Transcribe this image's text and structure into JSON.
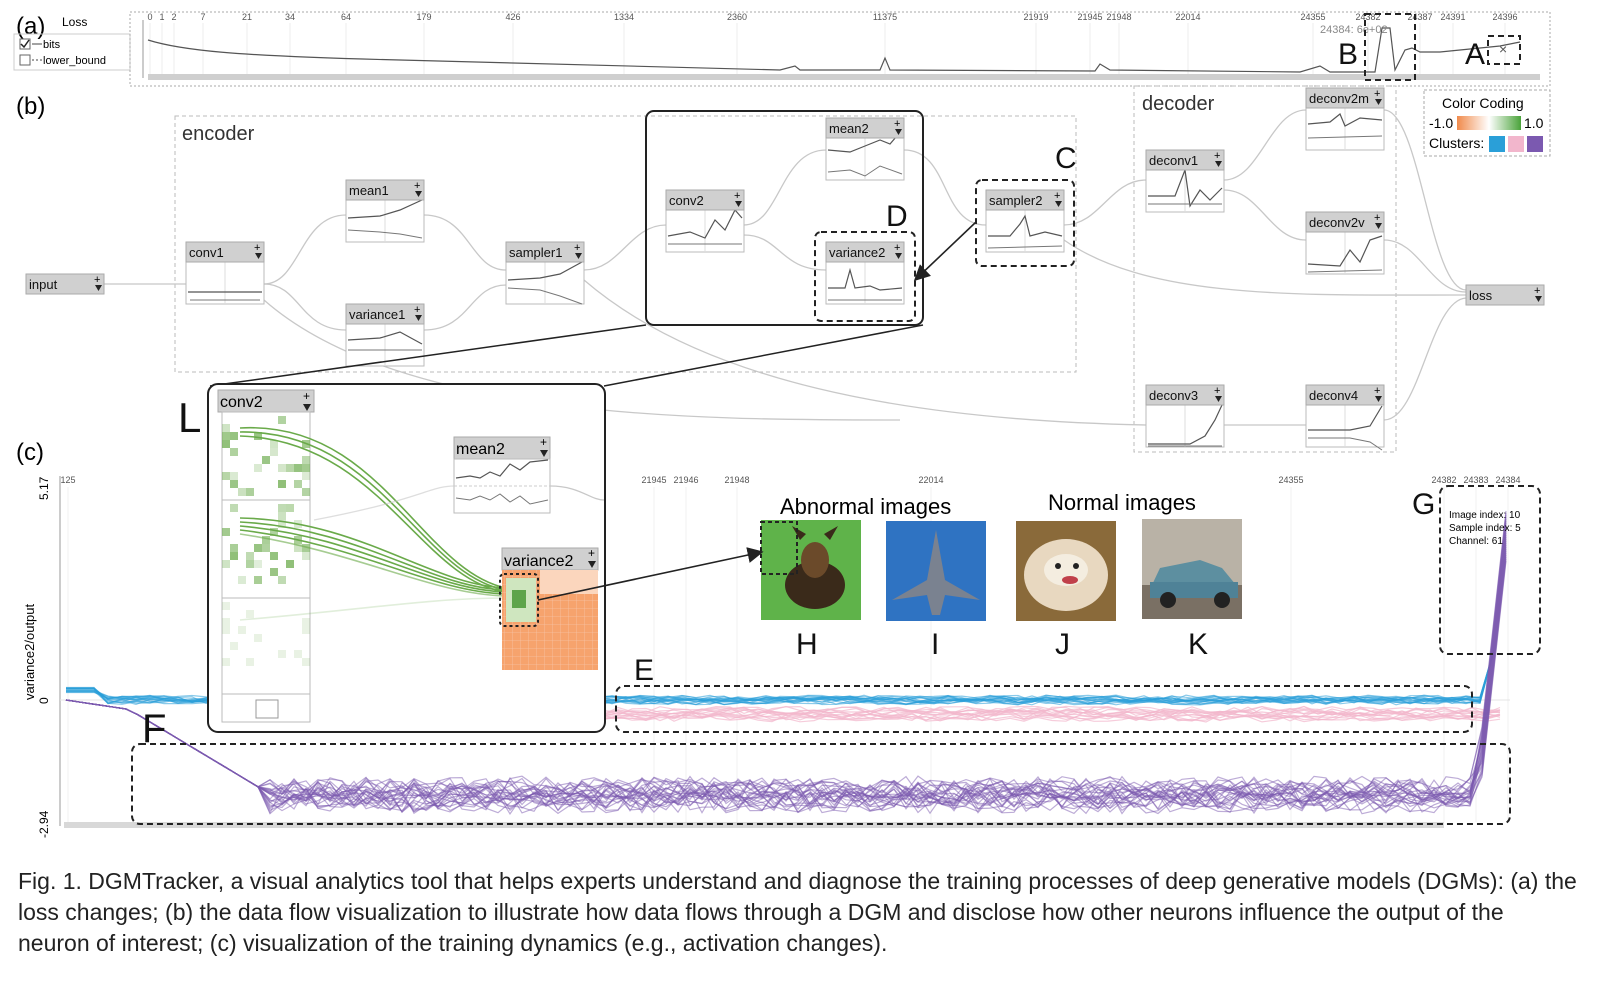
{
  "loss_panel": {
    "panel_label": "(a)",
    "title": "Loss",
    "legend": [
      {
        "label": "bits",
        "checked": true
      },
      {
        "label": "lower_bound",
        "checked": false
      }
    ],
    "ticks": [
      "0",
      "1",
      "2",
      "7",
      "21",
      "34",
      "64",
      "179",
      "426",
      "1334",
      "2360",
      "11375",
      "21919",
      "21945",
      "21948",
      "22014",
      "24355",
      "24382",
      "24387",
      "24391",
      "24396"
    ],
    "hover_readout": "24384: 6e+02",
    "close_glyph": "×"
  },
  "dataflow": {
    "panel_label": "(b)",
    "encoder_label": "encoder",
    "decoder_label": "decoder",
    "nodes": {
      "input": "input",
      "conv1": "conv1",
      "mean1": "mean1",
      "variance1": "variance1",
      "sampler1": "sampler1",
      "conv2": "conv2",
      "mean2": "mean2",
      "variance2": "variance2",
      "sampler2": "sampler2",
      "deconv1": "deconv1",
      "deconv2m": "deconv2m",
      "deconv2v": "deconv2v",
      "deconv3": "deconv3",
      "deconv4": "deconv4",
      "loss": "loss"
    },
    "color_coding": {
      "title": "Color Coding",
      "min_label": "-1.0",
      "max_label": "1.0",
      "clusters_label": "Clusters:",
      "cluster_colors": [
        "#2a9fd8",
        "#f2b6cc",
        "#7b59b0"
      ]
    }
  },
  "training_dynamics": {
    "panel_label": "(c)",
    "y_axis_label": "variance2/output",
    "y_max": "5.17",
    "y_zero": "0",
    "y_min": "-2.94",
    "ticks": [
      "125",
      "21945",
      "21946",
      "21948",
      "22014",
      "24355",
      "24382",
      "24383",
      "24384"
    ],
    "abnormal_title": "Abnormal images",
    "normal_title": "Normal images",
    "tooltip": {
      "image_index": "Image index: 10",
      "sample_index": "Sample index: 5",
      "channel": "Channel: 61"
    },
    "zoom_nodes": {
      "conv2": "conv2",
      "mean2": "mean2",
      "variance2": "variance2"
    }
  },
  "annotations": {
    "A": "A",
    "B": "B",
    "C": "C",
    "D": "D",
    "E": "E",
    "F": "F",
    "G": "G",
    "H": "H",
    "I": "I",
    "J": "J",
    "K": "K",
    "L": "L"
  },
  "caption": "Fig. 1. DGMTracker, a visual analytics tool that helps experts understand and diagnose the training processes of deep generative models (DGMs): (a) the loss changes; (b) the data flow visualization to illustrate how data flows through a DGM and disclose how other neurons influence the output of the neuron of interest; (c) visualization of the training dynamics (e.g., activation changes).",
  "colors": {
    "blue_cluster": "#2a9fd8",
    "pink_cluster": "#f2b6cc",
    "purple_cluster": "#7b59b0",
    "green_link": "#6aaa4a",
    "orange_heat": "#f4a070"
  }
}
